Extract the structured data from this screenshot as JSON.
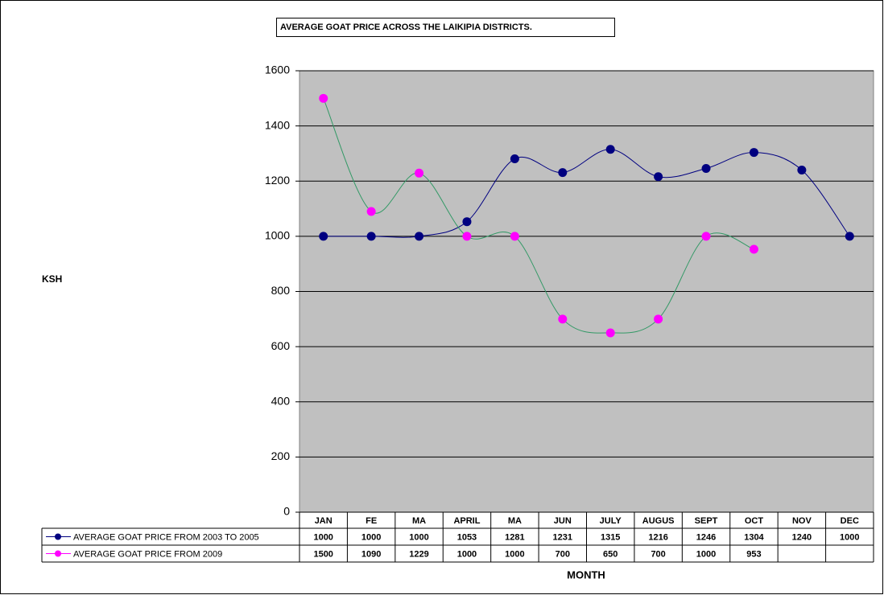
{
  "chart_data": {
    "type": "line",
    "title": "AVERAGE GOAT PRICE ACROSS THE LAIKIPIA DISTRICTS.",
    "y_label": "KSH",
    "x_label": "MONTH",
    "categories": [
      "JAN",
      "FE",
      "MA",
      "APRIL",
      "MA",
      "JUN",
      "JULY",
      "AUGUS",
      "SEPT",
      "OCT",
      "NOV",
      "DEC"
    ],
    "series": [
      {
        "name": "AVERAGE GOAT PRICE FROM 2003 TO 2005",
        "color": "#000080",
        "line_color": "#000080",
        "values": [
          1000,
          1000,
          1000,
          1053,
          1281,
          1231,
          1315,
          1216,
          1246,
          1304,
          1240,
          1000
        ]
      },
      {
        "name": "AVERAGE GOAT PRICE FROM 2009",
        "color": "#ff00ff",
        "line_color": "#339966",
        "values": [
          1500,
          1090,
          1229,
          1000,
          1000,
          700,
          650,
          700,
          1000,
          953,
          null,
          null
        ]
      }
    ],
    "ylim": [
      0,
      1600
    ],
    "yticks": [
      0,
      200,
      400,
      600,
      800,
      1000,
      1200,
      1400,
      1600
    ],
    "grid": true,
    "smooth": true,
    "plot_background": "#c0c0c0",
    "data_table": true
  }
}
